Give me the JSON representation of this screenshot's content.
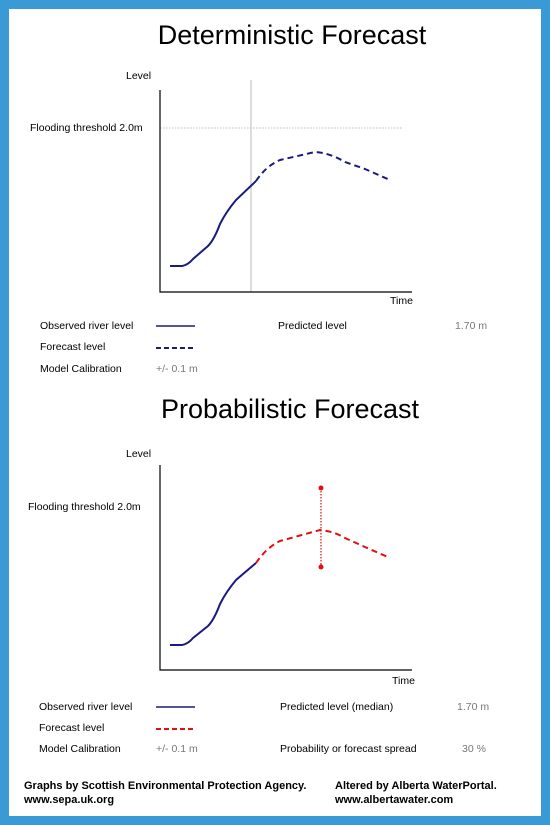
{
  "deterministic": {
    "title": "Deterministic Forecast",
    "y_label": "Level",
    "x_label": "Time",
    "threshold_label": "Flooding threshold 2.0m",
    "legend": {
      "observed": "Observed river level",
      "forecast": "Forecast level",
      "calibration": "Model Calibration",
      "calibration_value": "+/- 0.1 m",
      "predicted": "Predicted level",
      "predicted_value": "1.70 m"
    }
  },
  "probabilistic": {
    "title": "Probabilistic Forecast",
    "y_label": "Level",
    "x_label": "Time",
    "threshold_label": "Flooding threshold 2.0m",
    "legend": {
      "observed": "Observed river level",
      "forecast": "Forecast level",
      "calibration": "Model Calibration",
      "calibration_value": "+/- 0.1 m",
      "predicted": "Predicted level (median)",
      "predicted_value": "1.70 m",
      "spread": "Probability or forecast spread",
      "spread_value": "30 %"
    }
  },
  "footer": {
    "left_1": "Graphs by Scottish Environmental Protection Agency.",
    "left_2": "www.sepa.uk.org",
    "right_1": "Altered by Alberta WaterPortal.",
    "right_2": "www.albertawater.com"
  }
}
